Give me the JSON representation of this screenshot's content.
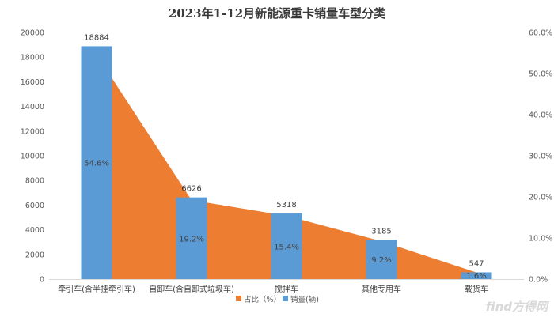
{
  "chart_data": {
    "type": "bar+area",
    "title": "2023年1-12月新能源重卡销量车型分类",
    "categories": [
      "牵引车(含半挂牵引车)",
      "自卸车(含自卸式垃圾车)",
      "搅拌车",
      "其他专用车",
      "载货车"
    ],
    "series": [
      {
        "name": "销量(辆)",
        "type": "bar",
        "axis": "left",
        "values": [
          18884,
          6626,
          5318,
          3185,
          547
        ],
        "labels": [
          "18884",
          "6626",
          "5318",
          "3185",
          "547"
        ],
        "color": "#5b9bd5"
      },
      {
        "name": "占比（%）",
        "type": "area",
        "axis": "right",
        "values": [
          54.6,
          19.2,
          15.4,
          9.2,
          1.6
        ],
        "labels": [
          "54.6%",
          "19.2%",
          "15.4%",
          "9.2%",
          "1.6%"
        ],
        "color": "#ed7d31"
      }
    ],
    "y_left": {
      "min": 0,
      "max": 20000,
      "ticks": [
        "0",
        "2000",
        "4000",
        "6000",
        "8000",
        "10000",
        "12000",
        "14000",
        "16000",
        "18000",
        "20000"
      ]
    },
    "y_right": {
      "min": 0,
      "max": 60,
      "ticks": [
        "0.0%",
        "10.0%",
        "20.0%",
        "30.0%",
        "40.0%",
        "50.0%",
        "60.0%"
      ]
    },
    "legend_position": "bottom",
    "grid": false
  },
  "watermark": "find方得网"
}
